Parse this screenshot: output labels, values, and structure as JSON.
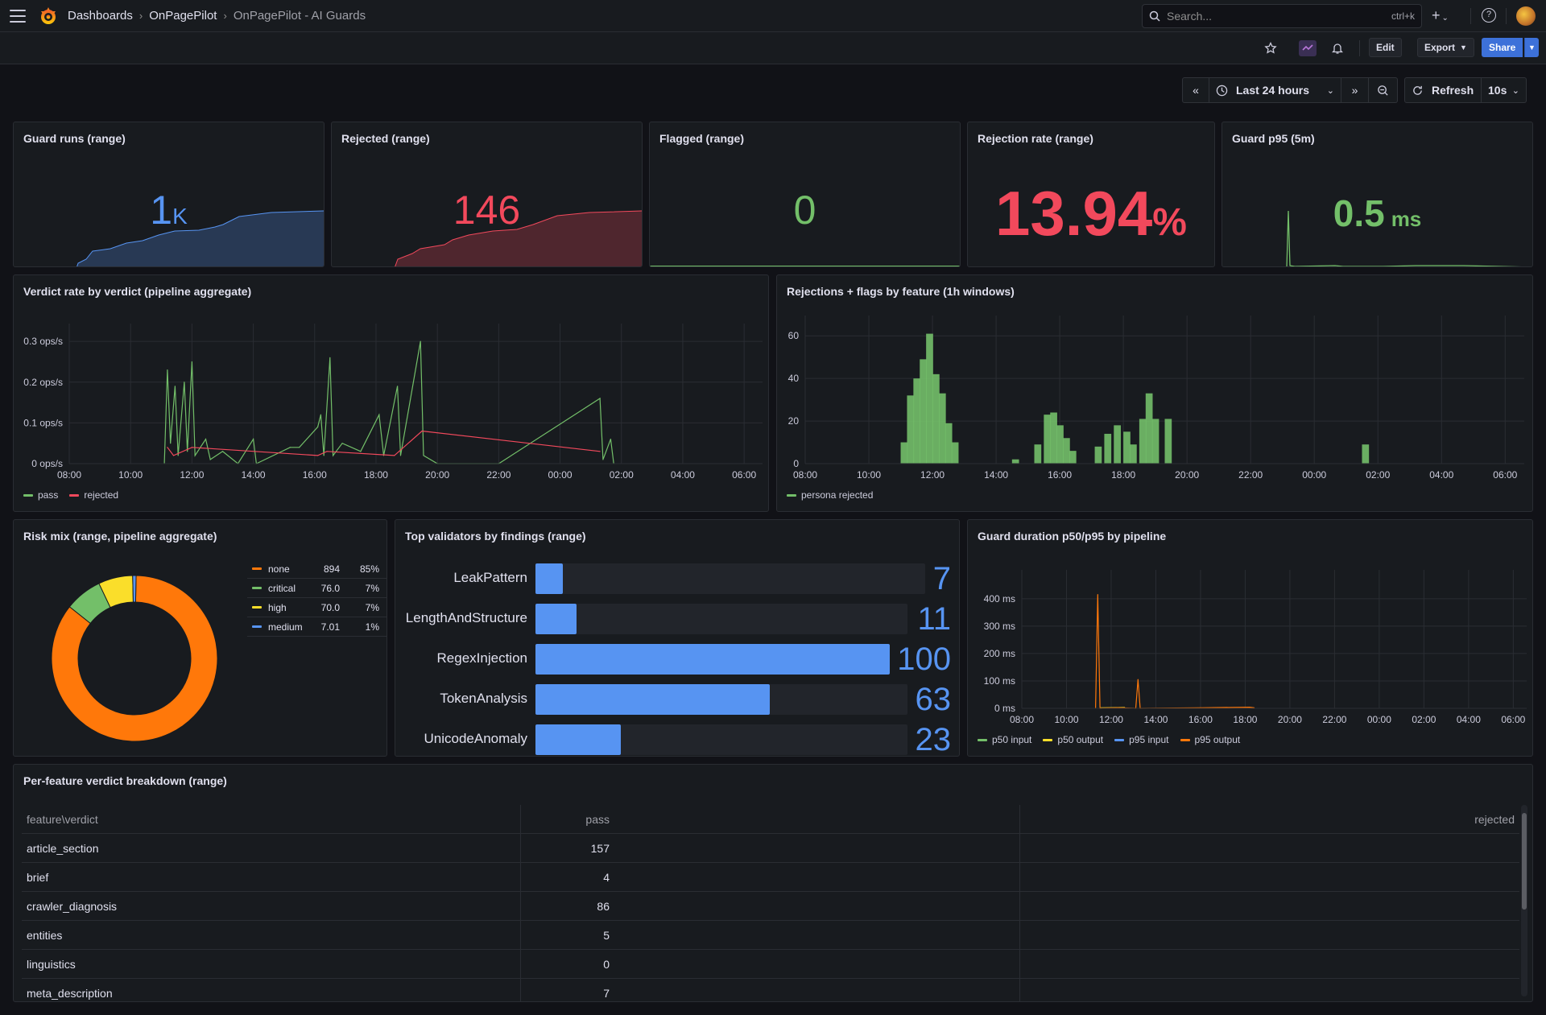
{
  "breadcrumb": {
    "root": "Dashboards",
    "folder": "OnPagePilot",
    "dashboard": "OnPagePilot - AI Guards"
  },
  "search": {
    "placeholder": "Search...",
    "shortcut": "ctrl+k"
  },
  "toolbar": {
    "edit": "Edit",
    "export": "Export",
    "share": "Share"
  },
  "time": {
    "range": "Last 24 hours",
    "refresh": "Refresh",
    "interval": "10s"
  },
  "colors": {
    "blue": "#5794f2",
    "red": "#f2495c",
    "green": "#73bf69",
    "orange": "#ff780a",
    "yellow": "#fade2a"
  },
  "stats": [
    {
      "title": "Guard runs (range)",
      "value": "1",
      "unit": "K",
      "color": "#5794f2"
    },
    {
      "title": "Rejected (range)",
      "value": "146",
      "unit": "",
      "color": "#f2495c"
    },
    {
      "title": "Flagged (range)",
      "value": "0",
      "unit": "",
      "color": "#73bf69"
    },
    {
      "title": "Rejection rate (range)",
      "value": "13.94",
      "unit": "%",
      "color": "#f2495c"
    },
    {
      "title": "Guard p95 (5m)",
      "value": "0.5",
      "unit": "ms",
      "color": "#73bf69"
    }
  ],
  "verdict_panel": {
    "title": "Verdict rate by verdict (pipeline aggregate)",
    "legend": [
      "pass",
      "rejected"
    ]
  },
  "features_panel": {
    "title": "Rejections + flags by feature (1h windows)",
    "legend": [
      "persona rejected"
    ]
  },
  "risk_panel": {
    "title": "Risk mix (range, pipeline aggregate)",
    "rows": [
      {
        "name": "none",
        "value": "894",
        "pct": "85%",
        "color": "#ff780a"
      },
      {
        "name": "critical",
        "value": "76.0",
        "pct": "7%",
        "color": "#73bf69"
      },
      {
        "name": "high",
        "value": "70.0",
        "pct": "7%",
        "color": "#fade2a"
      },
      {
        "name": "medium",
        "value": "7.01",
        "pct": "1%",
        "color": "#5794f2"
      }
    ]
  },
  "validators_panel": {
    "title": "Top validators by findings (range)"
  },
  "duration_panel": {
    "title": "Guard duration p50/p95 by pipeline",
    "legend": [
      "p50 input",
      "p50 output",
      "p95 input",
      "p95 output"
    ]
  },
  "breakdown_panel": {
    "title": "Per-feature verdict breakdown (range)",
    "headers": [
      "feature\\verdict",
      "pass",
      "rejected"
    ],
    "rows": [
      {
        "feature": "article_section",
        "pass": "157",
        "rejected": ""
      },
      {
        "feature": "brief",
        "pass": "4",
        "rejected": ""
      },
      {
        "feature": "crawler_diagnosis",
        "pass": "86",
        "rejected": ""
      },
      {
        "feature": "entities",
        "pass": "5",
        "rejected": ""
      },
      {
        "feature": "linguistics",
        "pass": "0",
        "rejected": ""
      },
      {
        "feature": "meta_description",
        "pass": "7",
        "rejected": ""
      }
    ]
  },
  "chart_data": [
    {
      "type": "line",
      "title": "Verdict rate by verdict (pipeline aggregate)",
      "x_ticks": [
        "08:00",
        "10:00",
        "12:00",
        "14:00",
        "16:00",
        "18:00",
        "20:00",
        "22:00",
        "00:00",
        "02:00",
        "04:00",
        "06:00"
      ],
      "y_ticks": [
        "0 ops/s",
        "0.1 ops/s",
        "0.2 ops/s",
        "0.3 ops/s"
      ],
      "ylim": [
        0,
        0.32
      ],
      "series": [
        {
          "name": "pass",
          "color": "#73bf69",
          "points": [
            [
              11.1,
              0
            ],
            [
              11.2,
              0.23
            ],
            [
              11.3,
              0.05
            ],
            [
              11.45,
              0.19
            ],
            [
              11.55,
              0.02
            ],
            [
              11.75,
              0.2
            ],
            [
              11.85,
              0.03
            ],
            [
              12.0,
              0.25
            ],
            [
              12.1,
              0.02
            ],
            [
              12.45,
              0.06
            ],
            [
              12.6,
              0.01
            ],
            [
              13.0,
              0.03
            ],
            [
              13.5,
              0.0
            ],
            [
              14.0,
              0.06
            ],
            [
              14.1,
              0.0
            ],
            [
              15.2,
              0.04
            ],
            [
              15.5,
              0.04
            ],
            [
              16.1,
              0.09
            ],
            [
              16.2,
              0.12
            ],
            [
              16.3,
              0.02
            ],
            [
              16.5,
              0.26
            ],
            [
              16.6,
              0.02
            ],
            [
              16.9,
              0.05
            ],
            [
              17.5,
              0.03
            ],
            [
              18.1,
              0.12
            ],
            [
              18.25,
              0.02
            ],
            [
              18.7,
              0.19
            ],
            [
              18.8,
              0.02
            ],
            [
              19.45,
              0.3
            ],
            [
              19.55,
              0.02
            ],
            [
              20.0,
              0.0
            ],
            [
              22.0,
              0.0
            ],
            [
              1.3,
              0.16
            ],
            [
              1.4,
              0.01
            ],
            [
              1.65,
              0.06
            ],
            [
              1.75,
              0.0
            ]
          ]
        },
        {
          "name": "rejected",
          "color": "#f2495c",
          "points": [
            [
              11.2,
              0.04
            ],
            [
              11.4,
              0.02
            ],
            [
              12.0,
              0.04
            ],
            [
              16.1,
              0.02
            ],
            [
              16.4,
              0.03
            ],
            [
              18.6,
              0.02
            ],
            [
              19.5,
              0.08
            ],
            [
              1.3,
              0.03
            ]
          ]
        }
      ]
    },
    {
      "type": "bar",
      "title": "Rejections + flags by feature (1h windows)",
      "x_ticks": [
        "08:00",
        "10:00",
        "12:00",
        "14:00",
        "16:00",
        "18:00",
        "20:00",
        "22:00",
        "00:00",
        "02:00",
        "04:00",
        "06:00"
      ],
      "y_ticks": [
        "0",
        "20",
        "40",
        "60"
      ],
      "ylim": [
        0,
        65
      ],
      "series": [
        {
          "name": "persona rejected",
          "color": "#73bf69",
          "points": [
            [
              11.0,
              10
            ],
            [
              11.2,
              32
            ],
            [
              11.4,
              40
            ],
            [
              11.6,
              49
            ],
            [
              11.8,
              61
            ],
            [
              12.0,
              42
            ],
            [
              12.2,
              33
            ],
            [
              12.4,
              19
            ],
            [
              12.6,
              10
            ],
            [
              14.5,
              2
            ],
            [
              15.2,
              9
            ],
            [
              15.5,
              23
            ],
            [
              15.7,
              24
            ],
            [
              15.9,
              18
            ],
            [
              16.1,
              12
            ],
            [
              16.3,
              6
            ],
            [
              17.1,
              8
            ],
            [
              17.4,
              14
            ],
            [
              17.7,
              18
            ],
            [
              18.0,
              15
            ],
            [
              18.2,
              9
            ],
            [
              18.5,
              21
            ],
            [
              18.7,
              33
            ],
            [
              18.9,
              21
            ],
            [
              19.3,
              21
            ],
            [
              1.5,
              9
            ]
          ]
        }
      ]
    },
    {
      "type": "pie",
      "title": "Risk mix (range, pipeline aggregate)",
      "categories": [
        "none",
        "critical",
        "high",
        "medium"
      ],
      "values": [
        894,
        76.0,
        70.0,
        7.01
      ],
      "percent": [
        "85%",
        "7%",
        "7%",
        "1%"
      ]
    },
    {
      "type": "bar",
      "title": "Top validators by findings (range)",
      "categories": [
        "LeakPattern",
        "LengthAndStructure",
        "RegexInjection",
        "TokenAnalysis",
        "UnicodeAnomaly"
      ],
      "values": [
        7,
        11,
        100,
        63,
        23
      ],
      "max": 100
    },
    {
      "type": "line",
      "title": "Guard duration p50/p95 by pipeline",
      "x_ticks": [
        "08:00",
        "10:00",
        "12:00",
        "14:00",
        "16:00",
        "18:00",
        "20:00",
        "22:00",
        "00:00",
        "02:00",
        "04:00",
        "06:00"
      ],
      "y_ticks": [
        "0 ms",
        "100 ms",
        "200 ms",
        "300 ms",
        "400 ms"
      ],
      "ylim": [
        0,
        470
      ],
      "series": [
        {
          "name": "p50 input",
          "color": "#73bf69",
          "points": []
        },
        {
          "name": "p50 output",
          "color": "#fade2a",
          "points": [
            [
              11.5,
              2
            ],
            [
              12.6,
              3
            ]
          ]
        },
        {
          "name": "p95 input",
          "color": "#5794f2",
          "points": []
        },
        {
          "name": "p95 output",
          "color": "#ff780a",
          "points": [
            [
              11.3,
              0
            ],
            [
              11.4,
              415
            ],
            [
              11.5,
              0
            ],
            [
              12.3,
              2
            ],
            [
              13.1,
              0
            ],
            [
              13.2,
              105
            ],
            [
              13.3,
              0
            ],
            [
              16.0,
              2
            ],
            [
              18.2,
              4
            ],
            [
              18.4,
              2
            ]
          ]
        }
      ]
    }
  ]
}
